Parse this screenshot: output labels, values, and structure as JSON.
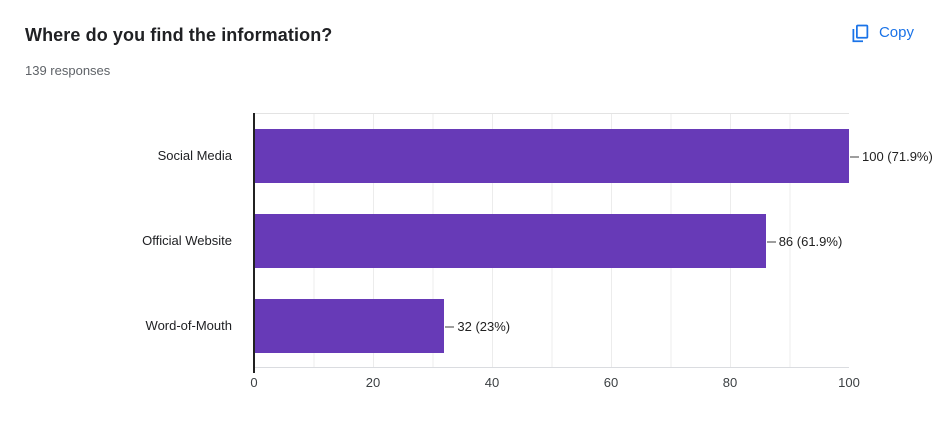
{
  "header": {
    "title": "Where do you find the information?",
    "subtitle": "139 responses",
    "copy_label": "Copy",
    "accent_blue": "#1a73e8"
  },
  "chart_data": {
    "type": "bar",
    "orientation": "horizontal",
    "title": "Where do you find the information?",
    "categories": [
      "Social Media",
      "Official Website",
      "Word-of-Mouth"
    ],
    "values": [
      100,
      86,
      32
    ],
    "bar_labels": [
      "100 (71.9%)",
      "86 (61.9%)",
      "32 (23%)"
    ],
    "xticks": [
      0,
      20,
      40,
      60,
      80,
      100
    ],
    "xlim": [
      0,
      100
    ],
    "xlabel": "",
    "ylabel": "",
    "bar_color": "#673ab7",
    "grid": true,
    "legend_position": "none"
  }
}
